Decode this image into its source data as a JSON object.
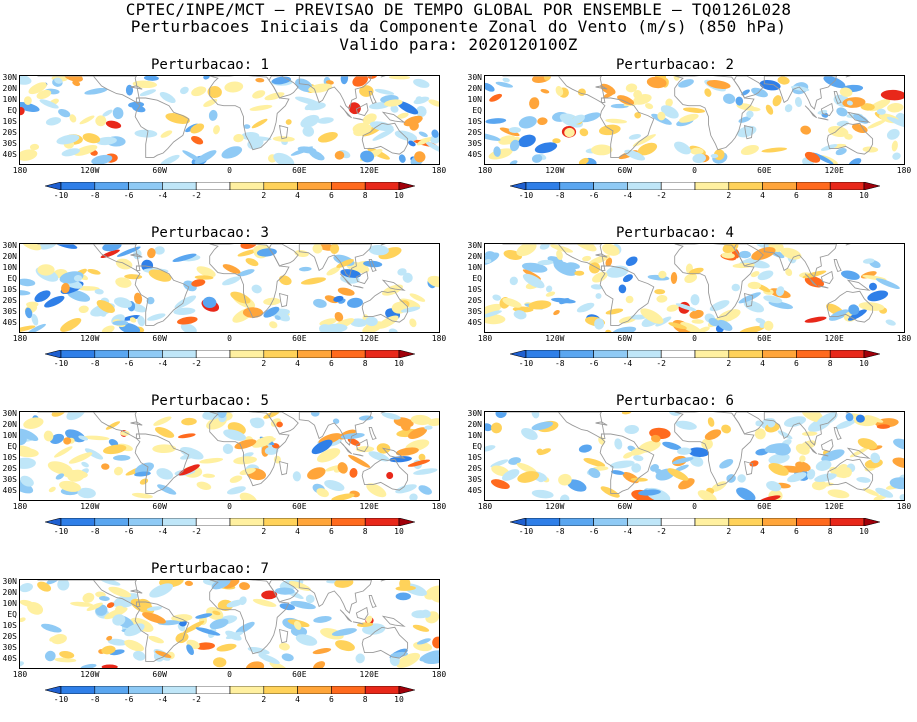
{
  "header": {
    "line1": "CPTEC/INPE/MCT – PREVISAO DE TEMPO GLOBAL POR ENSEMBLE – TQ0126L028",
    "line2": "Perturbacoes Iniciais da Componente Zonal do Vento (m/s) (850 hPa)",
    "line3": "Valido para: 2020120100Z"
  },
  "panels": [
    {
      "title": "Perturbacao: 1"
    },
    {
      "title": "Perturbacao: 2"
    },
    {
      "title": "Perturbacao: 3"
    },
    {
      "title": "Perturbacao: 4"
    },
    {
      "title": "Perturbacao: 5"
    },
    {
      "title": "Perturbacao: 6"
    },
    {
      "title": "Perturbacao: 7"
    }
  ],
  "lat_labels": [
    "30N",
    "20N",
    "10N",
    "EQ",
    "10S",
    "20S",
    "30S",
    "40S"
  ],
  "lon_labels": [
    "180",
    "120W",
    "60W",
    "0",
    "60E",
    "120E",
    "180"
  ],
  "colorbar": {
    "labels": [
      "-10",
      "-8",
      "-6",
      "-4",
      "-2",
      "2",
      "4",
      "6",
      "8",
      "10"
    ],
    "colors": [
      "#1e5fd0",
      "#2f7fe8",
      "#5aa6f0",
      "#8fcaf5",
      "#bfe6f8",
      "#ffffff",
      "#fff0a0",
      "#ffd25a",
      "#ffa53a",
      "#ff6a1e",
      "#e8281a",
      "#a0000a"
    ]
  }
}
